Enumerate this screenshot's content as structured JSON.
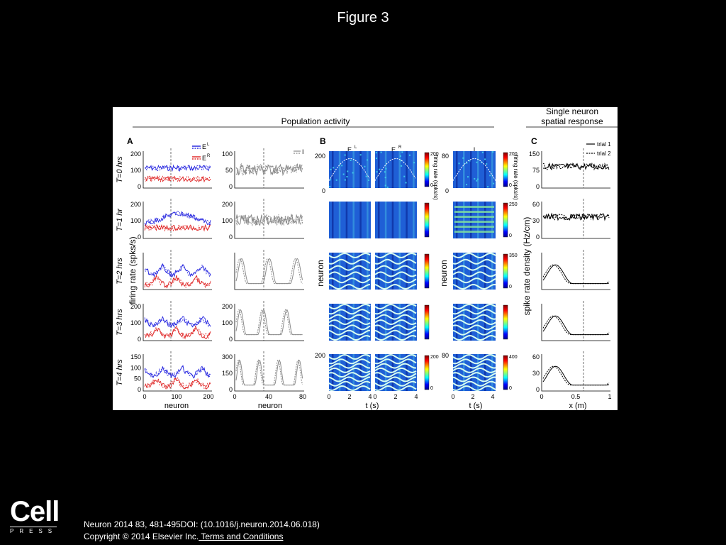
{
  "slide": {
    "title": "Figure 3"
  },
  "figure": {
    "population_header": "Population activity",
    "single_header_line1": "Single neuron",
    "single_header_line2": "spatial response",
    "panel_a": "A",
    "panel_b": "B",
    "panel_c": "C",
    "legend_el": "E",
    "legend_el_sup": "L",
    "legend_er": "E",
    "legend_er_sup": "R",
    "legend_i": "I",
    "legend_trial1": "trial 1",
    "legend_trial2": "trial 2",
    "ylabel_a": "firing rate (spks/s)",
    "ylabel_b": "neuron",
    "ylabel_b2": "neuron",
    "ylabel_c": "spike rate density (Hz/cm)",
    "colorbar_label": "firing rate (spks/s)",
    "colorbar_label2": "firing rate (spks/s)",
    "xlabel_neuron": "neuron",
    "xlabel_neuron2": "neuron",
    "xlabel_t": "t (s)",
    "xlabel_t2": "t (s)",
    "xlabel_x": "x (m)",
    "heat_col_el": "E",
    "heat_col_el_sup": "L",
    "heat_col_er": "E",
    "heat_col_er_sup": "R",
    "heat_col_i": "I",
    "rows": [
      {
        "label": "T=0 hrs",
        "e_ticks": [
          "200",
          "100",
          "0"
        ],
        "i_ticks": [
          "100",
          "50",
          "0"
        ],
        "c_ticks": [
          "150",
          "75",
          "0"
        ],
        "cb1": [
          "200",
          "0"
        ],
        "cb2": [
          "200",
          "0"
        ]
      },
      {
        "label": "T=1 hr",
        "e_ticks": [
          "200",
          "100",
          "0"
        ],
        "i_ticks": [
          "200",
          "100",
          "0"
        ],
        "c_ticks": [
          "60",
          "30",
          "0"
        ],
        "cb1": [],
        "cb2": [
          "250",
          "0"
        ]
      },
      {
        "label": "T=2 hrs",
        "e_ticks": [],
        "i_ticks": [],
        "c_ticks": [],
        "cb1": [],
        "cb2": [
          "350",
          "0"
        ]
      },
      {
        "label": "T=3 hrs",
        "e_ticks": [
          "200",
          "100",
          "0"
        ],
        "i_ticks": [
          "200",
          "100",
          "0"
        ],
        "c_ticks": [],
        "cb1": [],
        "cb2": []
      },
      {
        "label": "T=4 hrs",
        "e_ticks": [
          "150",
          "100",
          "50",
          "0"
        ],
        "i_ticks": [
          "300",
          "150",
          "0"
        ],
        "c_ticks": [
          "60",
          "30",
          "0"
        ],
        "cb1": [
          "200",
          "0"
        ],
        "cb2": [
          "400",
          "0"
        ]
      }
    ],
    "x_ticks_e": [
      "0",
      "100",
      "200"
    ],
    "x_ticks_i": [
      "0",
      "40",
      "80"
    ],
    "x_ticks_t": [
      "0",
      "2",
      "4"
    ],
    "x_ticks_t2": [
      "0",
      "2",
      "4"
    ],
    "x_ticks_t3": [
      "0",
      "2",
      "4"
    ],
    "x_ticks_x": [
      "0",
      "0.5",
      "1"
    ],
    "heat_y_top_e": "200",
    "heat_y_bot_e": "0",
    "heat_y_top_i": "80",
    "heat_y_bot_i": "0",
    "heat_y_top_e5": "200",
    "heat_y_top_i5": "80"
  },
  "footer": {
    "citation": "Neuron 2014 83, 481-495DOI: (10.1016/j.neuron.2014.06.018)",
    "copyright": "Copyright © 2014 Elsevier Inc.",
    "link": " Terms and Conditions"
  },
  "logo": {
    "name": "Cell",
    "press": "PRESS"
  }
}
